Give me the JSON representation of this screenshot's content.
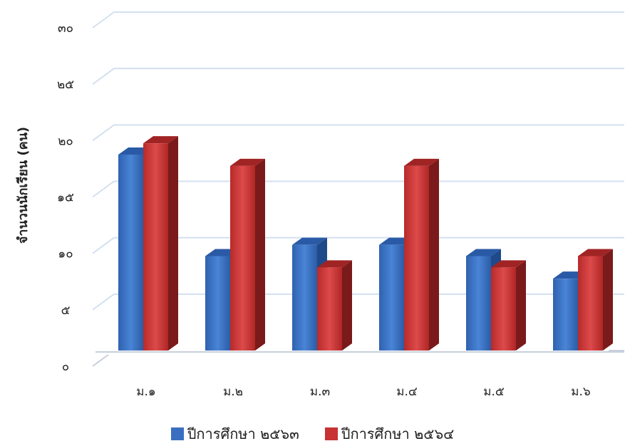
{
  "chart_data": {
    "type": "bar",
    "ylabel": "จำนวนนักเรียน (คน)",
    "xlabel": "",
    "ylim": [
      0,
      30
    ],
    "y_ticks": [
      {
        "value": 0,
        "label": "๐"
      },
      {
        "value": 5,
        "label": "๕"
      },
      {
        "value": 10,
        "label": "๑๐"
      },
      {
        "value": 15,
        "label": "๑๕"
      },
      {
        "value": 20,
        "label": "๒๐"
      },
      {
        "value": 25,
        "label": "๒๕"
      },
      {
        "value": 30,
        "label": "๓๐"
      }
    ],
    "categories": [
      "ม.๑",
      "ม.๒",
      "ม.๓",
      "ม.๔",
      "ม.๕",
      "ม.๖"
    ],
    "series": [
      {
        "name": "ปีการศึกษา ๒๕๖๓",
        "color": "#3a6fc0",
        "values": [
          18,
          9,
          10,
          10,
          9,
          7
        ]
      },
      {
        "name": "ปีการศึกษา ๒๕๖๔",
        "color": "#c83232",
        "values": [
          19,
          17,
          8,
          17,
          8,
          9
        ]
      }
    ],
    "grid": true,
    "legend_position": "bottom"
  }
}
